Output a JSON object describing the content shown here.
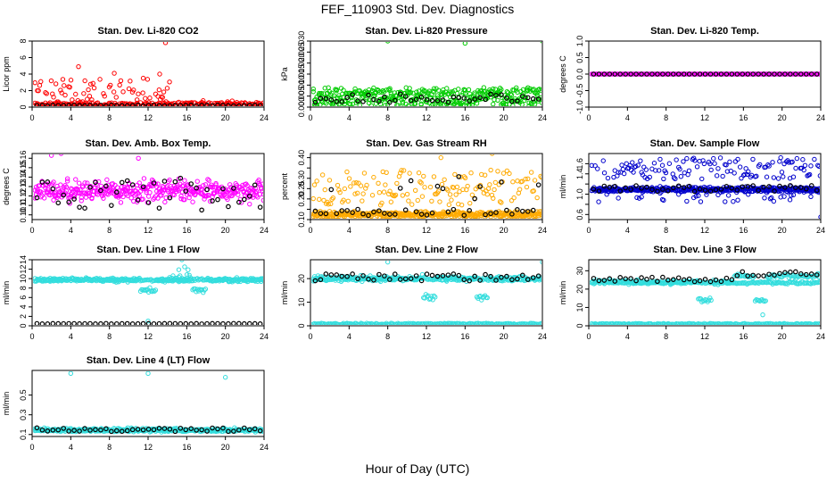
{
  "figure": {
    "title": "FEF_110903  Std. Dev. Diagnostics",
    "xlabel": "Hour of Day (UTC)"
  },
  "chart_data": [
    {
      "type": "scatter",
      "title": "Stan. Dev. Li-820 CO2",
      "ylabel": "Licor ppm",
      "color": "#ff0000",
      "xlim": [
        0,
        24
      ],
      "xticks": [
        0,
        4,
        8,
        12,
        16,
        20,
        24
      ],
      "ylim": [
        0,
        8
      ],
      "yticks": [
        0,
        2,
        4,
        6,
        8
      ],
      "ytick_labels": [
        "0",
        "2",
        "4",
        "6",
        "8"
      ],
      "points_summary": "dense band 0.1-0.6 ppm all day with scattered highs 1-4 ppm between hours 1-14",
      "outliers": [
        {
          "x": 4.8,
          "y": 4.9
        },
        {
          "x": 8.5,
          "y": 4.1
        },
        {
          "x": 13.2,
          "y": 4.0
        },
        {
          "x": 13.8,
          "y": 7.8
        },
        {
          "x": 11.5,
          "y": 3.5
        }
      ],
      "black_points_summary": "hourly medians near 0.2 ppm"
    },
    {
      "type": "scatter",
      "title": "Stan. Dev. Li-820 Pressure",
      "ylabel": "kPa",
      "color": "#00cc00",
      "xlim": [
        0,
        24
      ],
      "xticks": [
        0,
        4,
        8,
        12,
        16,
        20,
        24
      ],
      "ylim": [
        0,
        0.03
      ],
      "yticks": [
        0,
        0.005,
        0.01,
        0.015,
        0.02,
        0.025,
        0.03
      ],
      "ytick_labels": [
        "0.000",
        "0.005",
        "0.010",
        "0.015",
        "0.020",
        "0.025",
        "0.030"
      ],
      "points_summary": "dense band 0-0.009 kPa across all hours",
      "outliers": [
        {
          "x": 8.0,
          "y": 0.03
        },
        {
          "x": 16.0,
          "y": 0.029
        },
        {
          "x": 24.0,
          "y": 0.03
        }
      ],
      "black_points_summary": "medians near 0.004 kPa"
    },
    {
      "type": "scatter",
      "title": "Stan. Dev. Li-820 Temp.",
      "ylabel": "degrees C",
      "color": "#ff00ff",
      "xlim": [
        0,
        24
      ],
      "xticks": [
        0,
        4,
        8,
        12,
        16,
        20,
        24
      ],
      "ylim": [
        -1,
        1
      ],
      "yticks": [
        -1,
        -0.5,
        0,
        0.5,
        1
      ],
      "ytick_labels": [
        "-1.0",
        "-0.5",
        "0.0",
        "0.5",
        "1.0"
      ],
      "points_summary": "all values 0.0 across hours 0-24",
      "outliers": [],
      "black_points_summary": "medians at 0.0"
    },
    {
      "type": "scatter",
      "title": "Stan. Dev. Amb. Box Temp.",
      "ylabel": "degrees C",
      "color": "#ff00ff",
      "xlim": [
        0,
        24
      ],
      "xticks": [
        0,
        4,
        8,
        12,
        16,
        20,
        24
      ],
      "ylim": [
        0.095,
        0.165
      ],
      "yticks": [
        0.1,
        0.11,
        0.12,
        0.13,
        0.14,
        0.15,
        0.16
      ],
      "ytick_labels": [
        "0.10",
        "0.11",
        "0.12",
        "0.13",
        "0.14",
        "0.15",
        "0.16"
      ],
      "points_summary": "broad scatter 0.10-0.15 centered near 0.125",
      "outliers": [
        {
          "x": 2.0,
          "y": 0.163
        },
        {
          "x": 3.0,
          "y": 0.165
        },
        {
          "x": 11.0,
          "y": 0.16
        }
      ],
      "black_points_summary": "medians between 0.105 and 0.14"
    },
    {
      "type": "scatter",
      "title": "Stan. Dev. Gas Stream RH",
      "ylabel": "percent",
      "color": "#ffaa00",
      "xlim": [
        0,
        24
      ],
      "xticks": [
        0,
        4,
        8,
        12,
        16,
        20,
        24
      ],
      "ylim": [
        0.1,
        0.42
      ],
      "yticks": [
        0.1,
        0.15,
        0.2,
        0.25,
        0.3,
        0.35,
        0.4
      ],
      "ytick_labels": [
        "0.10",
        "",
        "0.20",
        "0.25",
        "0.30",
        "",
        "0.40"
      ],
      "points_summary": "dense band 0.11-0.14 plus scattered values 0.18-0.40",
      "outliers": [
        {
          "x": 13.5,
          "y": 0.4
        },
        {
          "x": 18.8,
          "y": 0.42
        }
      ],
      "black_points_summary": "medians mostly 0.12-0.15 with some near 0.22-0.33"
    },
    {
      "type": "scatter",
      "title": "Stan. Dev. Sample Flow",
      "ylabel": "ml/min",
      "color": "#0000cc",
      "xlim": [
        0,
        24
      ],
      "xticks": [
        0,
        4,
        8,
        12,
        16,
        20,
        24
      ],
      "ylim": [
        0.5,
        1.8
      ],
      "yticks": [
        0.6,
        0.8,
        1.0,
        1.2,
        1.4,
        1.6
      ],
      "ytick_labels": [
        "0.6",
        "",
        "1.0",
        "",
        "1.4",
        "1.6"
      ],
      "points_summary": "dense band 1.0-1.2 with upper scatter 1.3-1.75 and lower to 0.8",
      "outliers": [
        {
          "x": 24.0,
          "y": 0.55
        }
      ],
      "black_points_summary": "medians near 1.05-1.15"
    },
    {
      "type": "scatter",
      "title": "Stan. Dev. Line 1 Flow",
      "ylabel": "ml/min",
      "color": "#33dddd",
      "xlim": [
        0,
        24
      ],
      "xticks": [
        0,
        4,
        8,
        12,
        16,
        20,
        24
      ],
      "ylim": [
        0,
        14
      ],
      "yticks": [
        0,
        2,
        4,
        6,
        8,
        10,
        12,
        14
      ],
      "ytick_labels": [
        "0",
        "2",
        "4",
        "6",
        "8",
        "10",
        "12",
        "14"
      ],
      "points_summary": "dense band 9-10.5 all day, dip toward 4-8 near hours 12 and 17-18",
      "outliers": [
        {
          "x": 12.0,
          "y": 1.0
        },
        {
          "x": 15.5,
          "y": 14.0
        }
      ],
      "black_points_summary": "medians near 0.4 ml/min"
    },
    {
      "type": "scatter",
      "title": "Stan. Dev. Line 2 Flow",
      "ylabel": "ml/min",
      "color": "#33dddd",
      "xlim": [
        0,
        24
      ],
      "xticks": [
        0,
        4,
        8,
        12,
        16,
        20,
        24
      ],
      "ylim": [
        0,
        28
      ],
      "yticks": [
        0,
        10,
        20
      ],
      "ytick_labels": [
        "0",
        "10",
        "20"
      ],
      "points_summary": "dense band 18-22 plus flat band near 0.5; dips to 8-12 near hours 12 and 18",
      "outliers": [
        {
          "x": 8.0,
          "y": 27.0
        },
        {
          "x": 24.0,
          "y": 27.0
        }
      ],
      "black_points_summary": "medians near 20"
    },
    {
      "type": "scatter",
      "title": "Stan. Dev. Line 3 Flow",
      "ylabel": "ml/min",
      "color": "#33dddd",
      "xlim": [
        0,
        24
      ],
      "xticks": [
        0,
        4,
        8,
        12,
        16,
        20,
        24
      ],
      "ylim": [
        0,
        36
      ],
      "yticks": [
        0,
        10,
        20,
        30
      ],
      "ytick_labels": [
        "0",
        "10",
        "20",
        "30"
      ],
      "points_summary": "dense band 22-27 plus flat band near 0.5; dips near hours 12 and 17-18, rise to 30 after hour 15",
      "outliers": [
        {
          "x": 18.0,
          "y": 6.0
        }
      ],
      "black_points_summary": "medians 23-29"
    },
    {
      "type": "scatter",
      "title": "Stan. Dev. Line 4 (LT) Flow",
      "ylabel": "ml/min",
      "color": "#33dddd",
      "xlim": [
        0,
        24
      ],
      "xticks": [
        0,
        4,
        8,
        12,
        16,
        20,
        24
      ],
      "ylim": [
        0.08,
        0.75
      ],
      "yticks": [
        0.1,
        0.3,
        0.5
      ],
      "ytick_labels": [
        "0.1",
        "0.3",
        "0.5"
      ],
      "points_summary": "dense band 0.12-0.19 across all hours",
      "outliers": [
        {
          "x": 4.0,
          "y": 0.72
        },
        {
          "x": 12.0,
          "y": 0.72
        },
        {
          "x": 20.0,
          "y": 0.68
        }
      ],
      "black_points_summary": "medians near 0.15"
    }
  ]
}
